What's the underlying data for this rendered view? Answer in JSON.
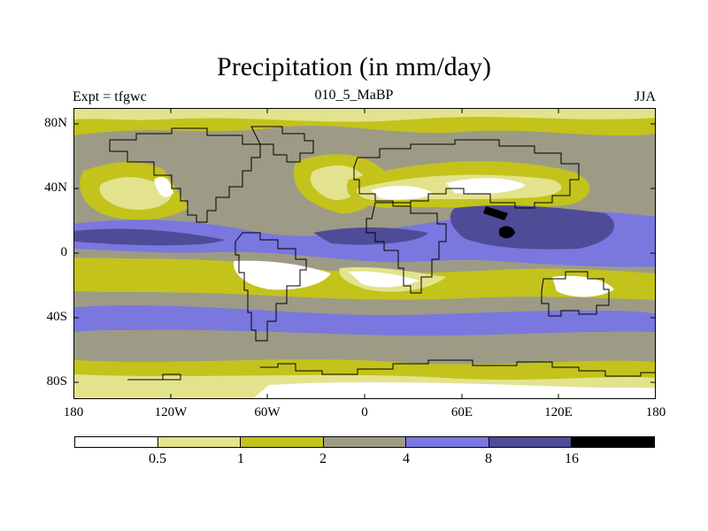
{
  "header": {
    "title": "Precipitation (in mm/day)",
    "left_label": "Expt = tfgwc",
    "center_label": "010_5_MaBP",
    "right_label": "JJA"
  },
  "map": {
    "lat_ticks": [
      "80N",
      "40N",
      "0",
      "40S",
      "80S"
    ],
    "lon_ticks": [
      "180",
      "120W",
      "60W",
      "0",
      "60E",
      "120E",
      "180"
    ],
    "legend_colors": [
      "#ffffff",
      "#e3e38e",
      "#c3c31c",
      "#9d9b86",
      "#7a77df",
      "#4e4c97",
      "#000000"
    ],
    "legend_labels": [
      "0.5",
      "1",
      "2",
      "4",
      "8",
      "16"
    ]
  }
}
